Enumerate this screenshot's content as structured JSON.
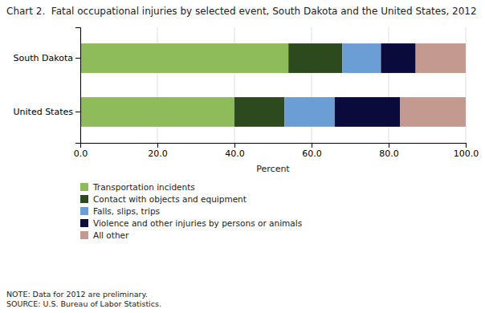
{
  "chart_data": {
    "type": "bar",
    "orientation": "horizontal",
    "stacked": true,
    "title": "Chart 2.  Fatal occupational injuries by selected event, South Dakota and the United States, 2012",
    "categories": [
      "South Dakota",
      "United States"
    ],
    "series": [
      {
        "name": "Transportation incidents",
        "color": "#8fbc5a",
        "values": [
          54.0,
          40.0
        ]
      },
      {
        "name": "Contact with objects and equipment",
        "color": "#2d4a1e",
        "values": [
          14.0,
          13.0
        ]
      },
      {
        "name": "Falls, slips, trips",
        "color": "#6a9ed4",
        "values": [
          10.0,
          13.0
        ]
      },
      {
        "name": "Violence and other injuries by persons or animals",
        "color": "#0a0a3c",
        "values": [
          9.0,
          17.0
        ]
      },
      {
        "name": "All other",
        "color": "#c49a90",
        "values": [
          13.0,
          17.0
        ]
      }
    ],
    "xlim": [
      0,
      100
    ],
    "xticks": [
      {
        "value": 0,
        "label": "0.0"
      },
      {
        "value": 20,
        "label": "20.0"
      },
      {
        "value": 40,
        "label": "40.0"
      },
      {
        "value": 60,
        "label": "60.0"
      },
      {
        "value": 80,
        "label": "80.0"
      },
      {
        "value": 100,
        "label": "100.0"
      }
    ],
    "xlabel": "Percent",
    "note": "NOTE: Data for 2012 are preliminary.\nSOURCE: U.S. Bureau of Labor Statistics.",
    "grid": true,
    "legend": "bottom"
  }
}
